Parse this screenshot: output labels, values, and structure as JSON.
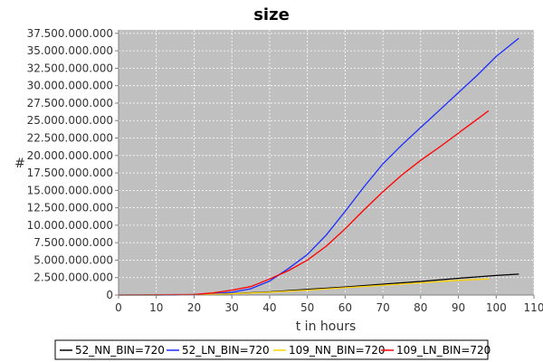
{
  "chart_data": {
    "type": "line",
    "title": "size",
    "xlabel": "t in hours",
    "ylabel": "#",
    "xlim": [
      0,
      110
    ],
    "ylim": [
      0,
      38000000000
    ],
    "xticks": [
      0,
      10,
      20,
      30,
      40,
      50,
      60,
      70,
      80,
      90,
      100,
      110
    ],
    "xtick_labels": [
      "0",
      "10",
      "20",
      "30",
      "40",
      "50",
      "60",
      "70",
      "80",
      "90",
      "100",
      "110"
    ],
    "yticks": [
      0,
      2500000000,
      5000000000,
      7500000000,
      10000000000,
      12500000000,
      15000000000,
      17500000000,
      20000000000,
      22500000000,
      25000000000,
      27500000000,
      30000000000,
      32500000000,
      35000000000,
      37500000000
    ],
    "ytick_labels": [
      "0",
      "2.500.000.000",
      "5.000.000.000",
      "7.500.000.000",
      "10.000.000.000",
      "12.500.000.000",
      "15.000.000.000",
      "17.500.000.000",
      "20.000.000.000",
      "22.500.000.000",
      "25.000.000.000",
      "27.500.000.000",
      "30.000.000.000",
      "32.500.000.000",
      "35.000.000.000",
      "37.500.000.000"
    ],
    "grid": true,
    "legend_position": "bottom",
    "plot_background": "#c0c0c0",
    "series": [
      {
        "name": "52_NN_BIN=720",
        "color": "#000000",
        "x": [
          0,
          10,
          20,
          30,
          40,
          50,
          60,
          70,
          80,
          90,
          100,
          106
        ],
        "y": [
          0,
          0,
          60000000,
          200000000,
          450000000,
          800000000,
          1150000000,
          1550000000,
          1950000000,
          2400000000,
          2800000000,
          3000000000
        ]
      },
      {
        "name": "52_LN_BIN=720",
        "color": "#1a2bff",
        "x": [
          0,
          15,
          20,
          25,
          30,
          35,
          40,
          45,
          50,
          55,
          60,
          65,
          70,
          75,
          80,
          85,
          90,
          95,
          100,
          106
        ],
        "y": [
          0,
          0,
          60000000,
          200000000,
          400000000,
          900000000,
          2000000000,
          3800000000,
          5800000000,
          8600000000,
          12000000000,
          15500000000,
          18800000000,
          21500000000,
          24000000000,
          26500000000,
          29000000000,
          31500000000,
          34200000000,
          36800000000
        ]
      },
      {
        "name": "109_NN_BIN=720",
        "color": "#ffd200",
        "x": [
          0,
          10,
          20,
          30,
          40,
          50,
          60,
          70,
          80,
          90,
          98
        ],
        "y": [
          0,
          0,
          50000000,
          180000000,
          400000000,
          700000000,
          1050000000,
          1400000000,
          1750000000,
          2100000000,
          2300000000
        ]
      },
      {
        "name": "109_LN_BIN=720",
        "color": "#ff0000",
        "x": [
          0,
          20,
          25,
          30,
          35,
          40,
          45,
          50,
          55,
          60,
          65,
          70,
          75,
          80,
          85,
          90,
          95,
          98
        ],
        "y": [
          0,
          80000000,
          300000000,
          700000000,
          1200000000,
          2300000000,
          3500000000,
          5000000000,
          7000000000,
          9500000000,
          12200000000,
          14800000000,
          17200000000,
          19300000000,
          21200000000,
          23200000000,
          25200000000,
          26400000000
        ]
      }
    ]
  }
}
